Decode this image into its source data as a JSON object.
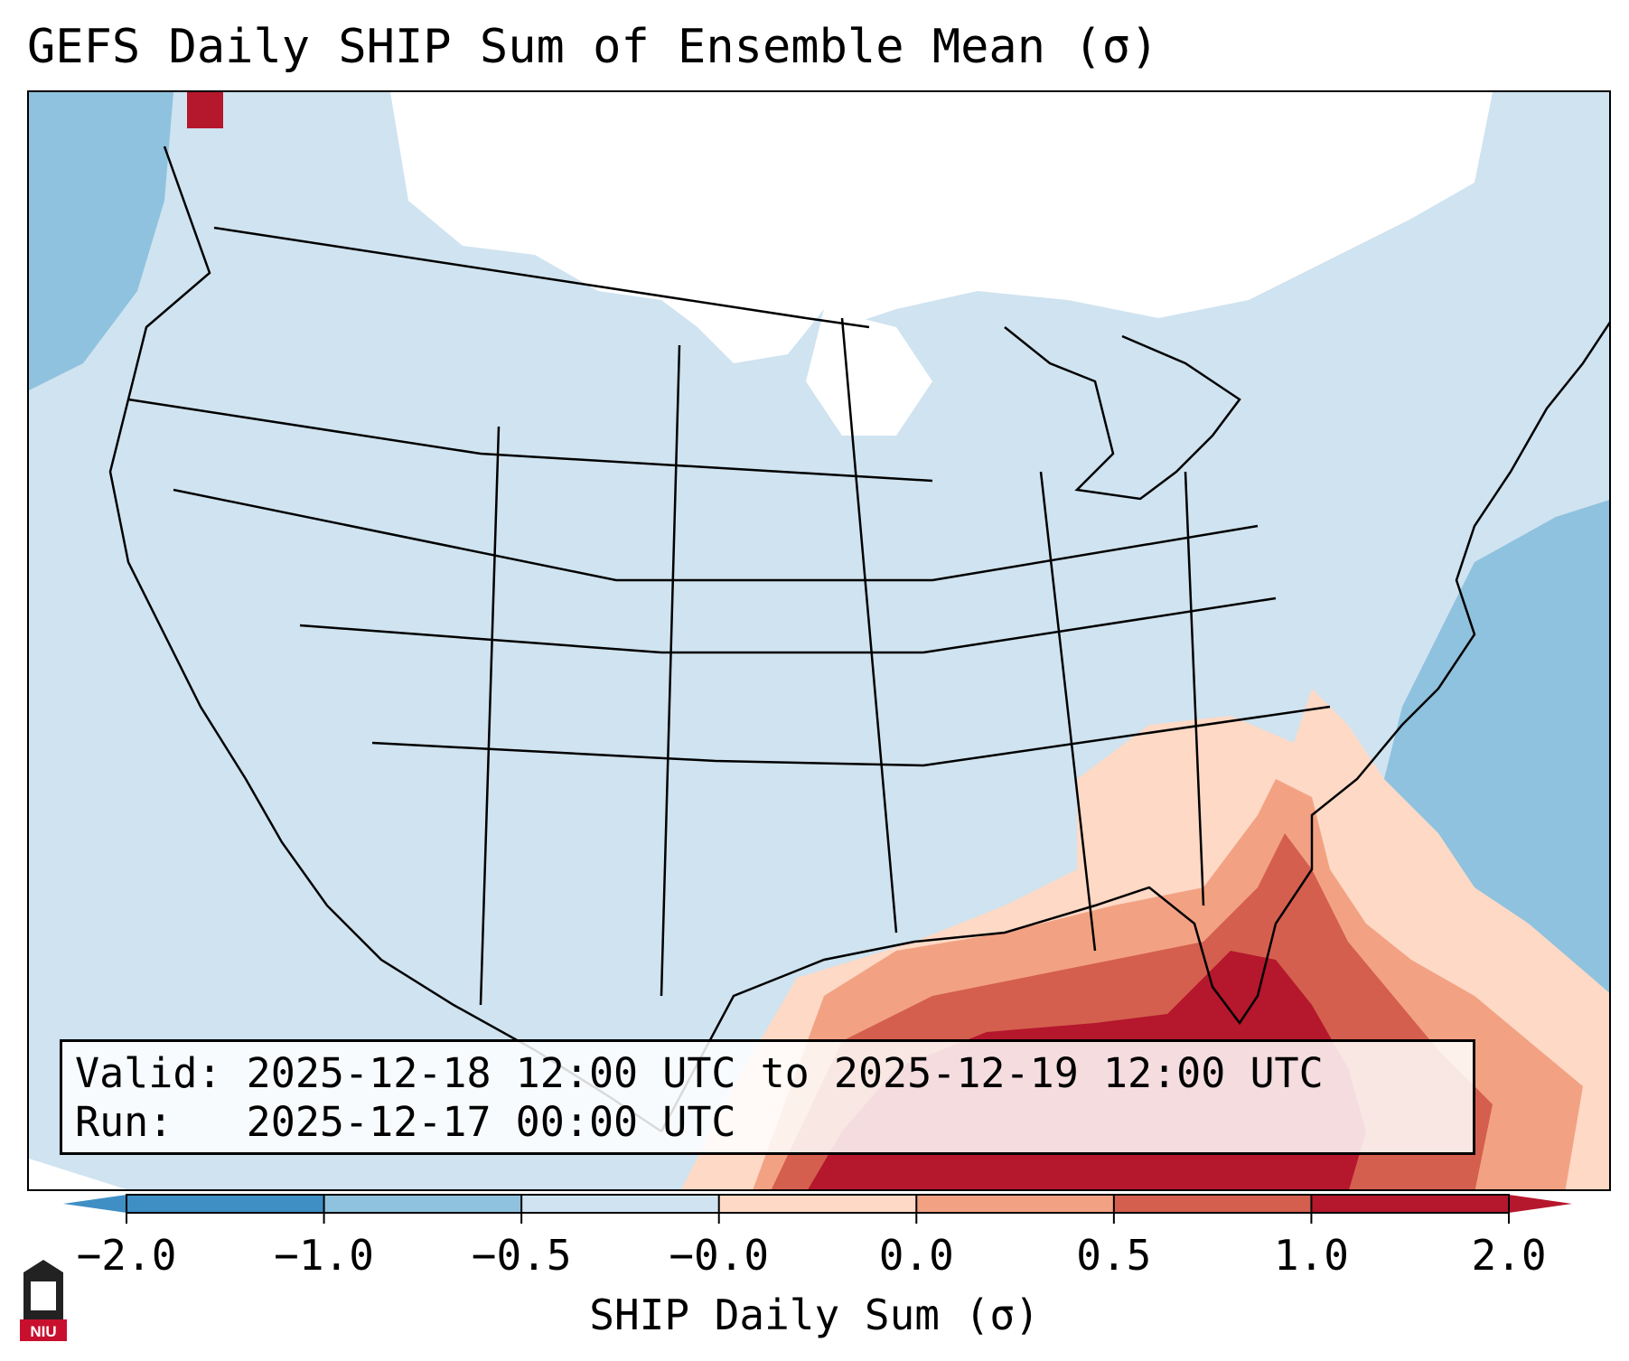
{
  "title": "GEFS Daily SHIP Sum of Ensemble Mean (σ)",
  "info": {
    "valid_label": "Valid:",
    "valid_value": "2025-12-18 12:00 UTC to 2025-12-19 12:00 UTC",
    "run_label": "Run:",
    "run_value": "2025-12-17 00:00 UTC"
  },
  "colorbar": {
    "label": "SHIP Daily Sum (σ)",
    "ticks": [
      "−2.0",
      "−1.0",
      "−0.5",
      "−0.0",
      "0.0",
      "0.5",
      "1.0",
      "2.0"
    ],
    "colors": [
      "#3f8fc5",
      "#8fc2de",
      "#cfe3f0",
      "#ffffff",
      "#fdd9c6",
      "#f2a283",
      "#d45f4e",
      "#b5172d"
    ]
  },
  "logo": {
    "text": "NIU",
    "color": "#c8102e"
  }
}
